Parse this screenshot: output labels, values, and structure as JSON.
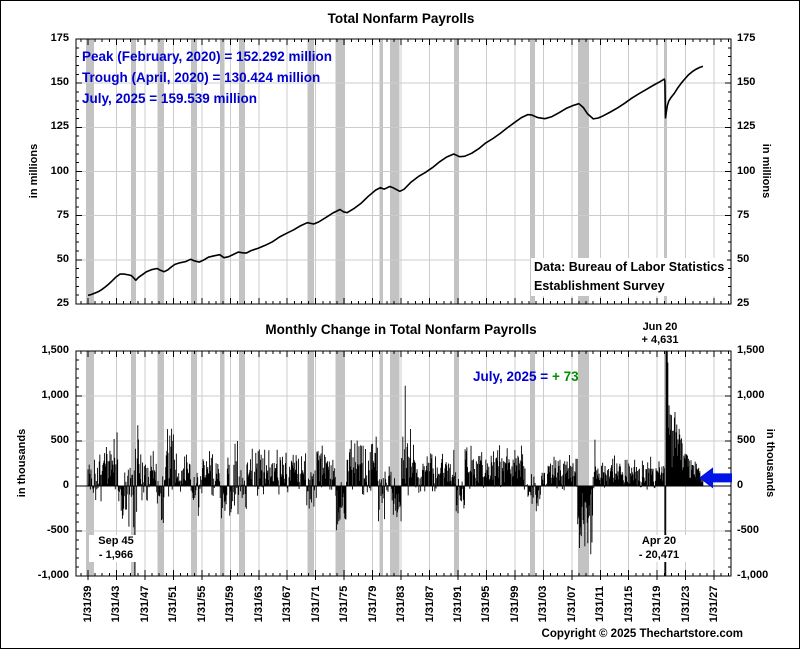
{
  "page": {
    "copyright": "Copyright © 2025 Thechartstore.com",
    "background": "#ffffff",
    "border_color": "#000000"
  },
  "axis": {
    "xtick_labels": [
      "1/31/39",
      "1/31/43",
      "1/31/47",
      "1/31/51",
      "1/31/55",
      "1/31/59",
      "1/31/63",
      "1/31/67",
      "1/31/71",
      "1/31/75",
      "1/31/79",
      "1/31/83",
      "1/31/87",
      "1/31/91",
      "1/31/95",
      "1/31/99",
      "1/31/03",
      "1/31/07",
      "1/31/11",
      "1/31/15",
      "1/31/19",
      "1/31/23",
      "1/31/27"
    ],
    "xtick_years": [
      1939.083,
      1943.083,
      1947.083,
      1951.083,
      1955.083,
      1959.083,
      1963.083,
      1967.083,
      1971.083,
      1975.083,
      1979.083,
      1983.083,
      1987.083,
      1991.083,
      1995.083,
      1999.083,
      2003.083,
      2007.083,
      2011.083,
      2015.083,
      2019.083,
      2023.083,
      2027.083
    ],
    "recessions": [
      [
        1938.8,
        1939.95
      ],
      [
        1945.13,
        1945.8
      ],
      [
        1948.87,
        1949.8
      ],
      [
        1953.54,
        1954.38
      ],
      [
        1957.63,
        1958.3
      ],
      [
        1960.3,
        1961.13
      ],
      [
        1969.96,
        1970.88
      ],
      [
        1973.88,
        1975.2
      ],
      [
        1980.05,
        1980.55
      ],
      [
        1981.55,
        1982.88
      ],
      [
        1990.55,
        1991.2
      ],
      [
        2001.2,
        2001.88
      ],
      [
        2007.95,
        2009.47
      ],
      [
        2020.05,
        2020.45
      ]
    ],
    "recession_color": "#c3c3c3",
    "grid_color": "#cccccc"
  },
  "chart_data": [
    {
      "type": "line",
      "title": "Total Nonfarm Payrolls",
      "ylabel": "in millions",
      "ylim": [
        25,
        175
      ],
      "ytick_labels": [
        "25",
        "50",
        "75",
        "100",
        "125",
        "150",
        "175"
      ],
      "ytick_values": [
        25,
        50,
        75,
        100,
        125,
        150,
        175
      ],
      "annotation_color": "#0000cd",
      "annotations": [
        "Peak (February, 2020) = 152.292 million",
        "Trough (April, 2020) = 130.424 million",
        "July, 2025 = 159.539 million"
      ],
      "source_note": [
        "Data:  Bureau of Labor Statistics",
        "Establishment Survey"
      ],
      "line_color": "#000000",
      "points": [
        [
          1939.08,
          29.9
        ],
        [
          1939.5,
          30.3
        ],
        [
          1940,
          31.1
        ],
        [
          1940.5,
          31.9
        ],
        [
          1941,
          33.1
        ],
        [
          1941.5,
          34.6
        ],
        [
          1942,
          36.3
        ],
        [
          1942.5,
          38.2
        ],
        [
          1943,
          40.2
        ],
        [
          1943.6,
          42.0
        ],
        [
          1944.2,
          41.9
        ],
        [
          1944.8,
          41.5
        ],
        [
          1945.2,
          41.0
        ],
        [
          1945.6,
          39.4
        ],
        [
          1945.8,
          38.4
        ],
        [
          1946.2,
          40.1
        ],
        [
          1946.8,
          41.8
        ],
        [
          1947.3,
          43.3
        ],
        [
          1948,
          44.4
        ],
        [
          1948.8,
          45.1
        ],
        [
          1949.3,
          44.0
        ],
        [
          1949.8,
          43.3
        ],
        [
          1950.3,
          44.3
        ],
        [
          1950.8,
          46.0
        ],
        [
          1951.3,
          47.4
        ],
        [
          1952,
          48.3
        ],
        [
          1952.8,
          49.0
        ],
        [
          1953.5,
          50.3
        ],
        [
          1954,
          49.5
        ],
        [
          1954.7,
          48.7
        ],
        [
          1955.3,
          49.8
        ],
        [
          1956,
          51.5
        ],
        [
          1956.8,
          52.3
        ],
        [
          1957.6,
          52.9
        ],
        [
          1958.2,
          51.2
        ],
        [
          1958.8,
          51.7
        ],
        [
          1959.5,
          53.0
        ],
        [
          1960.2,
          54.4
        ],
        [
          1960.8,
          54.0
        ],
        [
          1961.3,
          53.8
        ],
        [
          1962,
          55.2
        ],
        [
          1963,
          56.6
        ],
        [
          1964,
          58.2
        ],
        [
          1965,
          60.2
        ],
        [
          1966,
          62.9
        ],
        [
          1967,
          65.0
        ],
        [
          1968,
          67.0
        ],
        [
          1969,
          69.4
        ],
        [
          1969.9,
          71.0
        ],
        [
          1970.8,
          70.3
        ],
        [
          1971.5,
          71.4
        ],
        [
          1972.5,
          73.9
        ],
        [
          1973.5,
          76.5
        ],
        [
          1974.5,
          78.5
        ],
        [
          1975,
          77.2
        ],
        [
          1975.5,
          76.7
        ],
        [
          1976.5,
          79.1
        ],
        [
          1977.5,
          82.1
        ],
        [
          1978.5,
          86.0
        ],
        [
          1979.5,
          89.5
        ],
        [
          1980.2,
          90.9
        ],
        [
          1980.7,
          90.0
        ],
        [
          1981.5,
          91.5
        ],
        [
          1982,
          90.7
        ],
        [
          1982.9,
          88.8
        ],
        [
          1983.5,
          89.9
        ],
        [
          1984.5,
          94.0
        ],
        [
          1985.5,
          97.1
        ],
        [
          1986.5,
          99.5
        ],
        [
          1987.5,
          102.2
        ],
        [
          1988.5,
          105.5
        ],
        [
          1989.5,
          108.2
        ],
        [
          1990.5,
          109.9
        ],
        [
          1991.3,
          108.4
        ],
        [
          1992,
          108.6
        ],
        [
          1993,
          110.3
        ],
        [
          1994,
          112.9
        ],
        [
          1995,
          116.2
        ],
        [
          1996,
          118.7
        ],
        [
          1997,
          121.5
        ],
        [
          1998,
          124.7
        ],
        [
          1999,
          127.6
        ],
        [
          2000,
          130.5
        ],
        [
          2000.9,
          132.2
        ],
        [
          2001.5,
          131.9
        ],
        [
          2002.3,
          130.5
        ],
        [
          2003.3,
          129.9
        ],
        [
          2004.3,
          131.1
        ],
        [
          2005.3,
          133.3
        ],
        [
          2006.3,
          135.7
        ],
        [
          2007.3,
          137.4
        ],
        [
          2008.08,
          138.4
        ],
        [
          2008.7,
          136.2
        ],
        [
          2009.3,
          132.6
        ],
        [
          2010.1,
          129.8
        ],
        [
          2010.8,
          130.3
        ],
        [
          2011.5,
          131.5
        ],
        [
          2012.5,
          133.7
        ],
        [
          2013.5,
          136.0
        ],
        [
          2014.5,
          138.6
        ],
        [
          2015.5,
          141.5
        ],
        [
          2016.5,
          144.0
        ],
        [
          2017.5,
          146.3
        ],
        [
          2018.5,
          148.7
        ],
        [
          2019.5,
          150.9
        ],
        [
          2020.08,
          152.292
        ],
        [
          2020.17,
          150.9
        ],
        [
          2020.25,
          130.424
        ],
        [
          2020.33,
          132.9
        ],
        [
          2020.5,
          137.2
        ],
        [
          2020.7,
          139.8
        ],
        [
          2021,
          141.7
        ],
        [
          2021.5,
          144.3
        ],
        [
          2022,
          147.5
        ],
        [
          2022.5,
          150.2
        ],
        [
          2023,
          152.6
        ],
        [
          2023.5,
          154.8
        ],
        [
          2024,
          156.5
        ],
        [
          2024.5,
          157.8
        ],
        [
          2025,
          158.8
        ],
        [
          2025.5,
          159.539
        ]
      ]
    },
    {
      "type": "bar",
      "title": "Monthly Change in Total Nonfarm Payrolls",
      "ylabel": "in thousands",
      "ylim": [
        -1000,
        1500
      ],
      "ytick_labels": [
        "-1,000",
        "-500",
        "0",
        "500",
        "1,000",
        "1,500"
      ],
      "ytick_values": [
        -1000,
        -500,
        0,
        500,
        1000,
        1500
      ],
      "bar_color": "#000000",
      "start": 1939.0833,
      "end": 2025.5,
      "callouts": {
        "jun20": [
          "Jun 20",
          "+ 4,631"
        ],
        "apr20": [
          "Apr 20",
          "- 20,471"
        ],
        "sep45": [
          "Sep 45",
          "- 1,966"
        ],
        "current_label": "July, 2025 = ",
        "current_value": "+ 73",
        "current_label_color": "#0000cd",
        "current_value_color": "#008f00"
      },
      "arrow": {
        "color": "#0015e5",
        "value": 73
      },
      "overrides": [
        [
          1945.667,
          -1966
        ],
        [
          1983.667,
          1114
        ],
        [
          2010.333,
          516
        ],
        [
          2020.167,
          -1683
        ],
        [
          2020.25,
          -20471
        ],
        [
          2020.333,
          2833
        ],
        [
          2020.417,
          4631
        ],
        [
          2020.5,
          1761
        ],
        [
          2020.583,
          1371
        ],
        [
          2025.5,
          73
        ]
      ],
      "envelope": [
        [
          1938.9,
          1941.0,
          -180,
          380
        ],
        [
          1941.0,
          1943.3,
          -120,
          600
        ],
        [
          1943.3,
          1945.6,
          -500,
          300
        ],
        [
          1945.6,
          1946.9,
          -350,
          950
        ],
        [
          1946.9,
          1948.8,
          -200,
          400
        ],
        [
          1948.8,
          1949.9,
          -450,
          220
        ],
        [
          1949.9,
          1951.4,
          -150,
          850
        ],
        [
          1951.4,
          1953.5,
          -120,
          400
        ],
        [
          1953.5,
          1954.9,
          -380,
          160
        ],
        [
          1954.9,
          1957.5,
          -130,
          400
        ],
        [
          1957.5,
          1958.6,
          -450,
          160
        ],
        [
          1958.6,
          1960.3,
          -420,
          600
        ],
        [
          1960.3,
          1961.4,
          -320,
          220
        ],
        [
          1961.4,
          1969.7,
          -110,
          430
        ],
        [
          1969.7,
          1971.2,
          -300,
          260
        ],
        [
          1971.2,
          1973.9,
          -60,
          480
        ],
        [
          1973.9,
          1975.4,
          -620,
          260
        ],
        [
          1975.4,
          1979.9,
          -130,
          620
        ],
        [
          1979.9,
          1980.8,
          -460,
          260
        ],
        [
          1980.8,
          1981.6,
          -160,
          400
        ],
        [
          1981.6,
          1983.1,
          -450,
          210
        ],
        [
          1983.1,
          1985.0,
          -110,
          680
        ],
        [
          1985.0,
          1990.6,
          -120,
          420
        ],
        [
          1990.6,
          1992.0,
          -310,
          170
        ],
        [
          1992.0,
          2000.9,
          -60,
          460
        ],
        [
          2000.9,
          2002.6,
          -330,
          140
        ],
        [
          2002.6,
          2003.7,
          -160,
          170
        ],
        [
          2003.7,
          2007.9,
          -60,
          360
        ],
        [
          2007.9,
          2010.0,
          -800,
          80
        ],
        [
          2010.0,
          2019.9,
          -50,
          340
        ],
        [
          2019.9,
          2020.2,
          120,
          280
        ],
        [
          2020.6,
          2021.6,
          150,
          1050
        ],
        [
          2021.6,
          2022.6,
          250,
          750
        ],
        [
          2022.6,
          2023.6,
          120,
          420
        ],
        [
          2023.6,
          2025.45,
          10,
          300
        ]
      ]
    }
  ]
}
